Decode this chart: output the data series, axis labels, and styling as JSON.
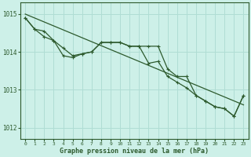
{
  "background_color": "#cdf0e8",
  "plot_bg_color": "#cdf0e8",
  "grid_color": "#b0ddd4",
  "line_color": "#2d5a2d",
  "marker_color": "#2d5a2d",
  "title": "Graphe pression niveau de la mer (hPa)",
  "title_color": "#2d5a2d",
  "ylim": [
    1011.7,
    1015.3
  ],
  "yticks": [
    1012,
    1013,
    1014,
    1015
  ],
  "xlim": [
    -0.5,
    23.5
  ],
  "xticks": [
    0,
    1,
    2,
    3,
    4,
    5,
    6,
    7,
    8,
    9,
    10,
    11,
    12,
    13,
    14,
    15,
    16,
    17,
    18,
    19,
    20,
    21,
    22,
    23
  ],
  "series_straight": {
    "x": [
      0,
      23
    ],
    "y": [
      1015.0,
      1012.6
    ]
  },
  "series_upper": {
    "x": [
      0,
      1,
      2,
      3,
      4,
      5,
      6,
      7,
      8,
      9,
      10,
      11,
      12,
      13,
      14,
      15,
      16,
      17,
      18,
      19,
      20,
      21,
      22,
      23
    ],
    "y": [
      1014.9,
      1014.6,
      1014.55,
      1014.3,
      1014.1,
      1013.9,
      1013.95,
      1014.0,
      1014.25,
      1014.25,
      1014.25,
      1014.15,
      1014.15,
      1013.7,
      1013.75,
      1013.35,
      1013.2,
      1013.05,
      1012.85,
      1012.7,
      1012.55,
      1012.5,
      1012.3,
      1012.85
    ]
  },
  "series_lower": {
    "x": [
      0,
      1,
      2,
      3,
      4,
      5,
      6,
      7,
      8,
      9,
      10,
      11,
      12,
      13,
      14,
      15,
      16,
      17,
      18,
      19,
      20,
      21,
      22,
      23
    ],
    "y": [
      1014.9,
      1014.6,
      1014.4,
      1014.3,
      1013.9,
      1013.85,
      1013.95,
      1014.0,
      1014.25,
      1014.25,
      1014.25,
      1014.15,
      1014.15,
      1014.15,
      1014.15,
      1013.55,
      1013.35,
      1013.35,
      1012.85,
      1012.7,
      1012.55,
      1012.5,
      1012.3,
      1012.85
    ]
  }
}
